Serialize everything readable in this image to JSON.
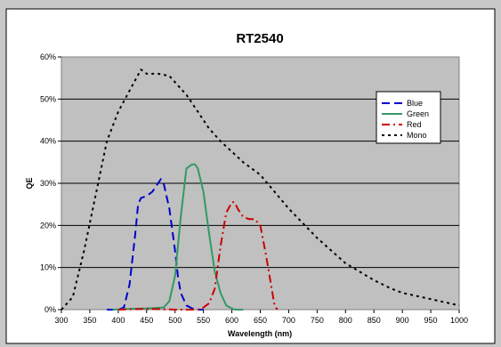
{
  "chart_data": {
    "type": "line",
    "title": "RT2540",
    "xlabel": "Wavelength (nm)",
    "ylabel": "QE",
    "xlim": [
      300,
      1000
    ],
    "ylim": [
      0,
      60
    ],
    "xticks": [
      "300",
      "350",
      "400",
      "450",
      "500",
      "550",
      "600",
      "650",
      "700",
      "750",
      "800",
      "850",
      "900",
      "950",
      "1000"
    ],
    "yticks": [
      "0%",
      "10%",
      "20%",
      "30%",
      "40%",
      "50%",
      "60%"
    ],
    "grid": "horizontal",
    "legend_position": "right",
    "colors": {
      "plot_bg": "#c0c0c0",
      "Blue": "#0000cc",
      "Green": "#339966",
      "Red": "#cc0000",
      "Mono": "#000000"
    },
    "series": [
      {
        "name": "Blue",
        "dash": "dash",
        "x": [
          380,
          400,
          410,
          420,
          430,
          435,
          440,
          450,
          460,
          470,
          475,
          480,
          490,
          500,
          505,
          510,
          520,
          530,
          540,
          550
        ],
        "y": [
          0,
          0,
          0.5,
          6,
          18,
          25,
          26.5,
          27,
          28,
          30,
          31,
          30,
          24,
          14,
          8,
          4,
          1,
          0.3,
          0,
          0
        ]
      },
      {
        "name": "Green",
        "dash": "solid",
        "x": [
          390,
          420,
          450,
          480,
          490,
          500,
          510,
          520,
          525,
          530,
          535,
          540,
          550,
          560,
          570,
          580,
          590,
          600,
          605,
          620
        ],
        "y": [
          0,
          0.2,
          0.3,
          0.5,
          2,
          8,
          22,
          33.5,
          34,
          34.5,
          34.5,
          33.5,
          28,
          18,
          9,
          4,
          1,
          0.3,
          0,
          0
        ]
      },
      {
        "name": "Red",
        "dash": "dashdot",
        "x": [
          400,
          450,
          500,
          540,
          550,
          560,
          570,
          580,
          590,
          600,
          605,
          610,
          620,
          630,
          640,
          650,
          660,
          670,
          675,
          680
        ],
        "y": [
          0,
          0.2,
          0,
          0,
          0.5,
          1.5,
          5,
          15,
          23,
          25.5,
          25.5,
          24,
          22,
          21.5,
          21.5,
          20,
          13,
          5,
          1,
          0
        ]
      },
      {
        "name": "Mono",
        "dash": "dot",
        "x": [
          300,
          320,
          340,
          360,
          380,
          400,
          420,
          440,
          450,
          470,
          490,
          500,
          520,
          540,
          560,
          580,
          600,
          620,
          650,
          700,
          750,
          800,
          850,
          880,
          900,
          950,
          1000
        ],
        "y": [
          0,
          3,
          14,
          27,
          40,
          47,
          52,
          57,
          56,
          56,
          55.5,
          54,
          51,
          47,
          43,
          40,
          37.5,
          35,
          32,
          24,
          17,
          11,
          7,
          5,
          4,
          2.5,
          1
        ]
      }
    ]
  }
}
